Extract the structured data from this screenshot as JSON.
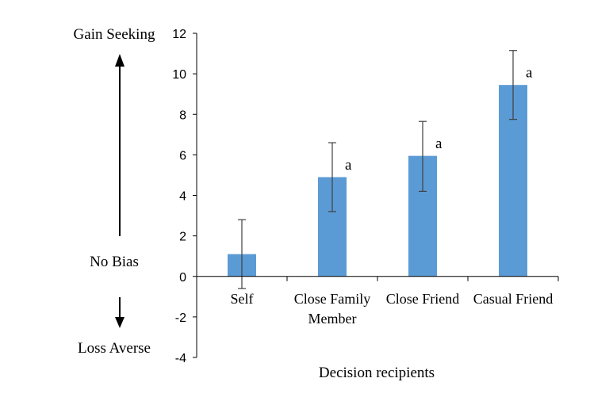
{
  "chart_data": {
    "type": "bar",
    "categories": [
      [
        "Self"
      ],
      [
        "Close Family",
        "Member"
      ],
      [
        "Close Friend"
      ],
      [
        "Casual Friend"
      ]
    ],
    "values": [
      1.1,
      4.9,
      5.95,
      9.45
    ],
    "error_low": [
      -0.6,
      3.2,
      4.2,
      7.75
    ],
    "error_high": [
      2.8,
      6.6,
      7.65,
      11.15
    ],
    "annotations": [
      "",
      "a",
      "a",
      "a"
    ],
    "ylim": [
      -4,
      12
    ],
    "yticks": [
      12,
      10,
      8,
      6,
      4,
      2,
      0,
      -2,
      -4
    ],
    "xlabel": "Decision recipients",
    "ylabel": "",
    "grid": false,
    "bar_color": "#5B9BD5",
    "side_labels": {
      "top": "Gain Seeking",
      "middle": "No Bias",
      "bottom": "Loss Averse"
    }
  }
}
